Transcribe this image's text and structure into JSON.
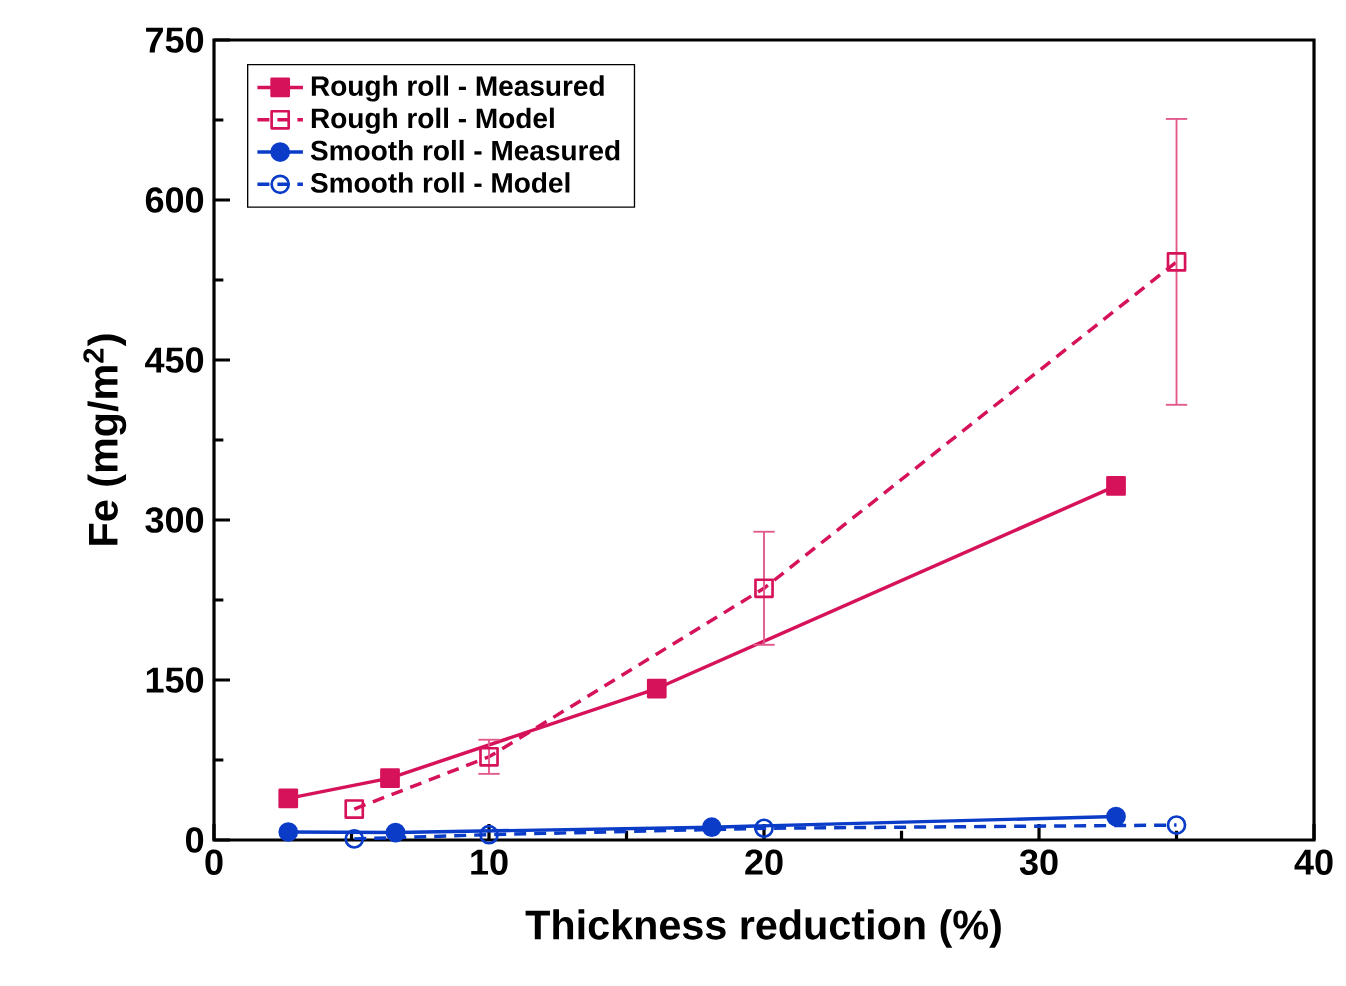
{
  "chart_data": {
    "type": "line",
    "xlabel": "Thickness reduction (%)",
    "ylabel": "Fe (mg/m$^{2}$)",
    "xlim": [
      0,
      40
    ],
    "xticks": [
      0,
      10,
      20,
      30,
      40
    ],
    "ylim": [
      0,
      750
    ],
    "yticks": [
      0,
      150,
      300,
      450,
      600,
      750
    ],
    "grid": false,
    "legend": "top left",
    "series": [
      {
        "name": "Rough roll - Measured",
        "color": "#d6125a",
        "marker": "square",
        "line_style": "solid",
        "x": [
          2.7,
          6.4,
          16.1,
          32.8
        ],
        "values": [
          39,
          58,
          142,
          332
        ]
      },
      {
        "name": "Rough roll - Model",
        "color": "#d6125a",
        "marker": "square",
        "line_style": "dashed",
        "x": [
          5.1,
          10,
          20,
          35
        ],
        "values": [
          29,
          78,
          236,
          542
        ],
        "errors": [
          null,
          16,
          53,
          134
        ]
      },
      {
        "name": "Smooth roll - Measured",
        "color": "#0a3cc8",
        "marker": "circle",
        "line_style": "solid",
        "x": [
          2.7,
          6.6,
          18.1,
          32.8
        ],
        "values": [
          7.5,
          7,
          12,
          22
        ]
      },
      {
        "name": "Smooth roll - Model",
        "color": "#0a3cc8",
        "marker": "circle",
        "line_style": "dashed",
        "x": [
          5.1,
          10,
          20,
          35
        ],
        "values": [
          1,
          5,
          11,
          14
        ]
      }
    ]
  }
}
